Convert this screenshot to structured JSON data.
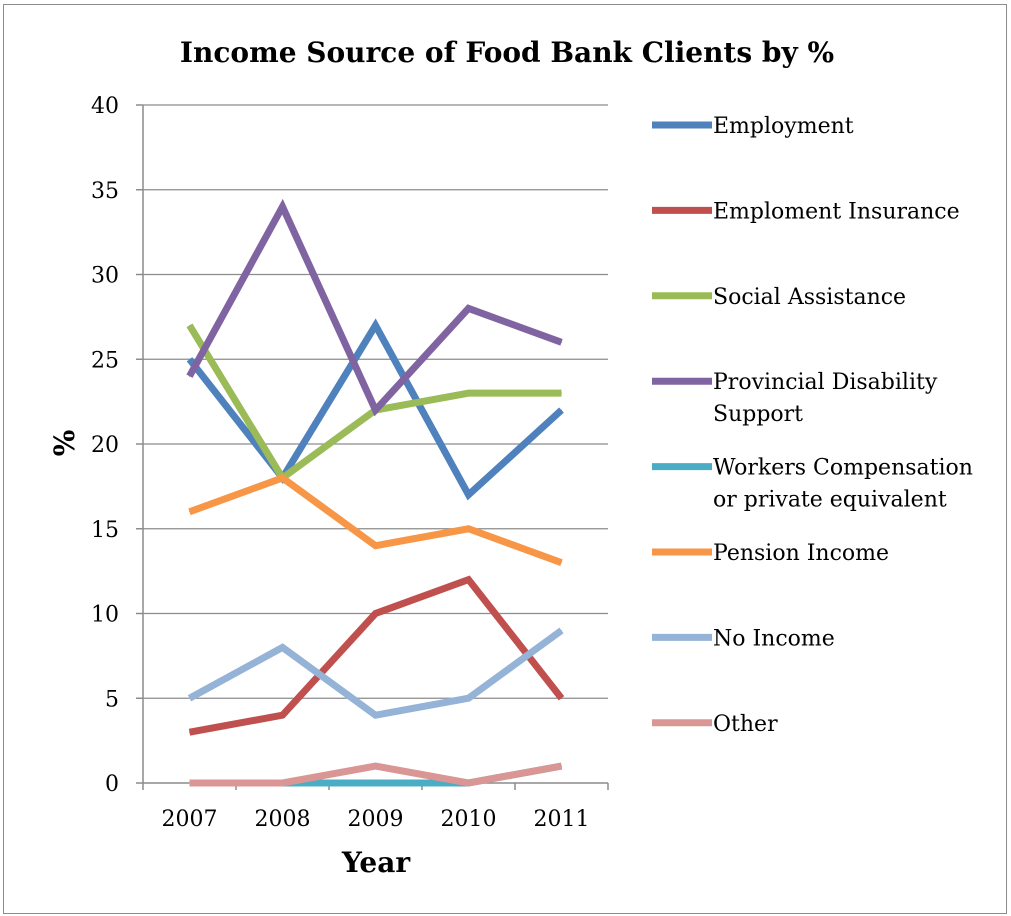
{
  "chart_data": {
    "type": "line",
    "title": "Income Source of Food Bank Clients by %",
    "xlabel": "Year",
    "ylabel": "%",
    "categories": [
      "2007",
      "2008",
      "2009",
      "2010",
      "2011"
    ],
    "ylim": [
      0,
      40
    ],
    "yticks": [
      0,
      5,
      10,
      15,
      20,
      25,
      30,
      35,
      40
    ],
    "grid": true,
    "legend_position": "right",
    "series": [
      {
        "name": "Employment",
        "color": "#4f81bd",
        "values": [
          25,
          18,
          27,
          17,
          22
        ]
      },
      {
        "name": "Emploment Insurance",
        "color": "#c0504d",
        "values": [
          3,
          4,
          10,
          12,
          5
        ]
      },
      {
        "name": "Social Assistance",
        "color": "#9bbb59",
        "values": [
          27,
          18,
          22,
          23,
          23
        ]
      },
      {
        "name": "Provincial Disability Support",
        "legend_lines": [
          "Provincial Disability",
          "Support"
        ],
        "color": "#8064a2",
        "values": [
          24,
          34,
          22,
          28,
          26
        ]
      },
      {
        "name": "Workers Compensation or private equivalent",
        "legend_lines": [
          "Workers Compensation",
          "or private equivalent"
        ],
        "color": "#4bacc6",
        "values": [
          0,
          0,
          0,
          0,
          1
        ]
      },
      {
        "name": "Pension Income",
        "color": "#f79646",
        "values": [
          16,
          18,
          14,
          15,
          13
        ]
      },
      {
        "name": "No Income",
        "color": "#95b3d7",
        "values": [
          5,
          8,
          4,
          5,
          9
        ]
      },
      {
        "name": "Other",
        "color": "#d99694",
        "values": [
          0,
          0,
          1,
          0,
          1
        ]
      }
    ]
  }
}
